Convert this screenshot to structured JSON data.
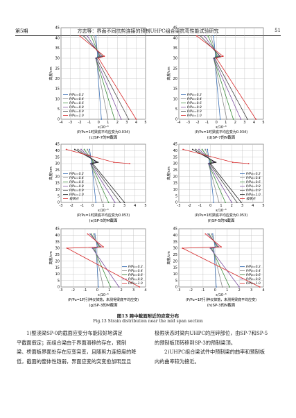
{
  "header": {
    "issue": "第5期",
    "running_title": "方志等：界面不同抗剪连接的预制UHPC组合梁抗弯性能试验研究",
    "page": "51"
  },
  "chart_data": [
    {
      "type": "line",
      "x_label": "ε/10⁻³",
      "y_label": "高度/cm",
      "note": "(P/Pu=1时梁底平均应变为0.034)",
      "caption": "(c)SP-7的M截面",
      "legend": "lower-left",
      "grid": true,
      "xlim": [
        -4,
        5
      ],
      "ylim": [
        0,
        45
      ],
      "xticks": [
        -4,
        -3,
        -2,
        -1,
        0,
        1,
        2,
        3,
        4,
        5
      ],
      "yticks": [
        0,
        5,
        10,
        15,
        20,
        25,
        30,
        35,
        40,
        45
      ],
      "heights": [
        0,
        30,
        31,
        41
      ],
      "series": [
        {
          "name": "P/Pu=0.2",
          "color": "#3a6fb5",
          "values": [
            0.3,
            -0.2,
            -0.1,
            -0.3
          ]
        },
        {
          "name": "P/Pu=0.4",
          "color": "#8a8a8a",
          "values": [
            1.0,
            -0.3,
            0.0,
            -0.5
          ]
        },
        {
          "name": "P/Pu=0.6",
          "color": "#3c8c3c",
          "values": [
            1.7,
            -0.3,
            0.1,
            -0.8
          ]
        },
        {
          "name": "P/Pu=0.8",
          "color": "#7b4f9e",
          "values": [
            2.4,
            -0.3,
            0.2,
            -1.2
          ]
        },
        {
          "name": "P/Pu=0.9",
          "color": "#444444",
          "values": [
            3.2,
            -0.2,
            0.4,
            -1.6
          ]
        },
        {
          "name": "P/Pu=1.0",
          "color": "#d62728",
          "values": [
            4.0,
            0.0,
            0.6,
            -2.0
          ]
        }
      ]
    },
    {
      "type": "line",
      "x_label": "ε/10⁻³",
      "y_label": "高度/cm",
      "note": "(P/Pu=1时梁底平均应变为0.034)",
      "caption": "(d)SP-7的N截面",
      "legend": "lower-left",
      "grid": true,
      "xlim": [
        -4,
        5
      ],
      "ylim": [
        0,
        45
      ],
      "xticks": [
        -4,
        -3,
        -2,
        -1,
        0,
        1,
        2,
        3,
        4,
        5
      ],
      "yticks": [
        0,
        5,
        10,
        15,
        20,
        25,
        30,
        35,
        40,
        45
      ],
      "heights": [
        0,
        30,
        31,
        41
      ],
      "series": [
        {
          "name": "P/Pu=0.2",
          "color": "#3a6fb5",
          "values": [
            0.4,
            -0.2,
            -0.1,
            -0.3
          ]
        },
        {
          "name": "P/Pu=0.4",
          "color": "#8a8a8a",
          "values": [
            1.1,
            -0.3,
            0.0,
            -0.6
          ]
        },
        {
          "name": "P/Pu=0.6",
          "color": "#3c8c3c",
          "values": [
            1.8,
            -0.3,
            0.1,
            -0.9
          ]
        },
        {
          "name": "P/Pu=0.8",
          "color": "#7b4f9e",
          "values": [
            2.6,
            -0.3,
            0.3,
            -1.3
          ]
        },
        {
          "name": "P/Pu=0.9",
          "color": "#444444",
          "values": [
            3.3,
            -0.2,
            0.4,
            -1.7
          ]
        },
        {
          "name": "P/Pu=1.0",
          "color": "#d62728",
          "values": [
            4.2,
            0.0,
            0.7,
            -2.1
          ]
        }
      ]
    },
    {
      "type": "line",
      "x_label": "ε/10⁻³",
      "y_label": "高度/cm",
      "note": "(P/Pu=1时梁底平均应变为0.053)",
      "caption": "(e)SP-5的M截面",
      "legend": "lower-left",
      "grid": true,
      "xlim": [
        -3,
        5
      ],
      "ylim": [
        0,
        45
      ],
      "xticks": [
        -3,
        -2,
        -1,
        0,
        1,
        2,
        3,
        4,
        5
      ],
      "yticks": [
        0,
        5,
        10,
        15,
        20,
        25,
        30,
        35,
        40,
        45
      ],
      "heights": [
        0,
        30,
        31,
        41
      ],
      "series": [
        {
          "name": "P/Pu=0.2",
          "color": "#3a6fb5",
          "values": [
            0.3,
            -0.1,
            -0.1,
            -0.3
          ]
        },
        {
          "name": "P/Pu=0.4",
          "color": "#8a8a8a",
          "values": [
            0.9,
            -0.2,
            0.0,
            -0.5
          ]
        },
        {
          "name": "P/Pu=0.6",
          "color": "#3c8c3c",
          "values": [
            1.5,
            -0.2,
            0.1,
            -0.8
          ]
        },
        {
          "name": "P/Pu=0.8",
          "color": "#7b4f9e",
          "values": [
            2.1,
            -0.2,
            0.3,
            -1.1
          ]
        },
        {
          "name": "P/Pu=0.9",
          "color": "#444444",
          "values": [
            2.6,
            -0.1,
            0.4,
            -1.4
          ]
        },
        {
          "name": "P/Pu=1.0",
          "color": "#222222",
          "values": [
            3.0,
            0.0,
            0.5,
            -1.7
          ]
        },
        {
          "name": "极限点",
          "color": "#d62728",
          "values": [
            null,
            3.5,
            2.0,
            -2.5
          ]
        }
      ]
    },
    {
      "type": "line",
      "x_label": "ε/10⁻³",
      "y_label": "高度/cm",
      "note": "(P/Pu=1时梁底平均应变为0.053)",
      "caption": "(f)SP-5的N截面",
      "legend": "lower-right",
      "grid": true,
      "xlim": [
        -3,
        5
      ],
      "ylim": [
        0,
        45
      ],
      "xticks": [
        -3,
        -2,
        -1,
        0,
        1,
        2,
        3,
        4,
        5
      ],
      "yticks": [
        0,
        5,
        10,
        15,
        20,
        25,
        30,
        35,
        40,
        45
      ],
      "heights": [
        0,
        30,
        31,
        41
      ],
      "series": [
        {
          "name": "P/Pu=0.2",
          "color": "#3a6fb5",
          "values": [
            0.3,
            -0.1,
            -0.1,
            -0.3
          ]
        },
        {
          "name": "P/Pu=0.4",
          "color": "#8a8a8a",
          "values": [
            0.8,
            -0.2,
            0.0,
            -0.5
          ]
        },
        {
          "name": "P/Pu=0.6",
          "color": "#3c8c3c",
          "values": [
            1.4,
            -0.2,
            0.1,
            -0.8
          ]
        },
        {
          "name": "P/Pu=0.8",
          "color": "#7b4f9e",
          "values": [
            2.0,
            -0.2,
            0.3,
            -1.1
          ]
        },
        {
          "name": "P/Pu=0.9",
          "color": "#444444",
          "values": [
            2.5,
            -0.1,
            0.4,
            -1.4
          ]
        },
        {
          "name": "P/Pu=1.0",
          "color": "#222222",
          "values": [
            2.9,
            0.0,
            0.5,
            -1.7
          ]
        },
        {
          "name": "极限点",
          "color": "#d62728",
          "values": [
            null,
            3.6,
            2.1,
            -2.6
          ]
        }
      ]
    },
    {
      "type": "line",
      "x_label": "ε/10⁻³",
      "y_label": "高度/cm",
      "note": "(P/Pu=1时引伸仪掉落，未测得梁底平均应变)",
      "caption": "(g)SP-3的M截面",
      "legend": "lower-right",
      "grid": true,
      "xlim": [
        -3,
        4
      ],
      "ylim": [
        0,
        45
      ],
      "xticks": [
        -3,
        -2,
        -1,
        0,
        1,
        2,
        3,
        4
      ],
      "yticks": [
        0,
        5,
        10,
        15,
        20,
        25,
        30,
        35,
        40,
        45
      ],
      "heights": [
        0,
        30,
        31,
        41
      ],
      "series": [
        {
          "name": "P/Pu=0.2",
          "color": "#3a6fb5",
          "values": [
            0.1,
            -0.1,
            0.0,
            -0.2
          ]
        },
        {
          "name": "P/Pu=0.4",
          "color": "#8a8a8a",
          "values": [
            0.5,
            -0.2,
            0.1,
            -0.3
          ]
        },
        {
          "name": "P/Pu=0.6",
          "color": "#3c8c3c",
          "values": [
            1.1,
            -0.3,
            0.2,
            -0.5
          ]
        },
        {
          "name": "P/Pu=0.8",
          "color": "#7b4f9e",
          "values": [
            1.8,
            -0.4,
            0.3,
            -0.6
          ]
        },
        {
          "name": "P/Pu=1.0",
          "color": "#d62728",
          "values": [
            3.5,
            -2.5,
            0.5,
            -0.8
          ]
        }
      ]
    },
    {
      "type": "line",
      "x_label": "ε/10⁻³",
      "y_label": "高度/cm",
      "note": "(P/Pu=1时引伸仪掉落，未测得梁底平均应变)",
      "caption": "(h)SP-3的N截面",
      "legend": "lower-right",
      "grid": true,
      "xlim": [
        -3,
        4
      ],
      "ylim": [
        0,
        45
      ],
      "xticks": [
        -3,
        -2,
        -1,
        0,
        1,
        2,
        3,
        4
      ],
      "yticks": [
        0,
        5,
        10,
        15,
        20,
        25,
        30,
        35,
        40,
        45
      ],
      "heights": [
        0,
        30,
        31,
        41
      ],
      "series": [
        {
          "name": "P/Pu=0.2",
          "color": "#3a6fb5",
          "values": [
            0.1,
            -0.1,
            0.0,
            -0.2
          ]
        },
        {
          "name": "P/Pu=0.4",
          "color": "#8a8a8a",
          "values": [
            0.6,
            -0.2,
            0.1,
            -0.3
          ]
        },
        {
          "name": "P/Pu=0.6",
          "color": "#3c8c3c",
          "values": [
            1.2,
            -0.3,
            0.2,
            -0.5
          ]
        },
        {
          "name": "P/Pu=0.8",
          "color": "#7b4f9e",
          "values": [
            2.0,
            -0.4,
            0.3,
            -0.6
          ]
        },
        {
          "name": "P/Pu=1.0",
          "color": "#d62728",
          "values": [
            3.7,
            -2.7,
            0.5,
            -0.8
          ]
        }
      ]
    }
  ],
  "figure": {
    "caption_cn": "图13  跨中截面附近的应变分布",
    "caption_en": "Fig.13  Strain distribution near the mid span section"
  },
  "body": {
    "left": [
      "1)整浇梁SP-0的截面应变分布能较好地满足",
      "平截面假定；而组合梁由于界面滑移的存在，预制",
      "梁、桥面板界面处存在应变突变，且随剪力连接度的降",
      "低，截面的整体性趋弱，界面应变的突变愈加明显且"
    ],
    "right": [
      "极限状态时梁内UHPC的压碎部位，由SP-7和SP-5",
      "的预制板顶转移到SP-3的预制梁顶。",
      "2)UHPC组合梁试件中预制梁的曲率和预制板",
      "内的曲率较为接近。"
    ]
  }
}
